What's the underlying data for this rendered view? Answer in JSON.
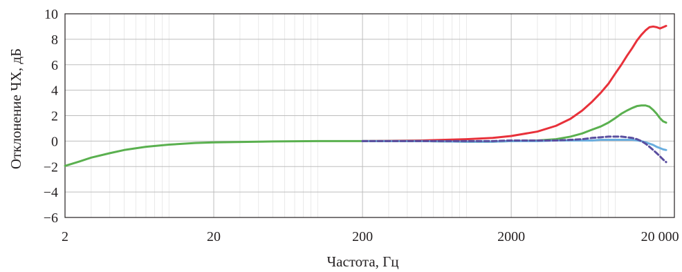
{
  "chart_data": {
    "type": "line",
    "xlabel": "Частота, Гц",
    "ylabel": "Отклонение ЧХ, дБ",
    "x_scale": "log",
    "xlim": [
      2,
      25000
    ],
    "ylim": [
      -6,
      10
    ],
    "grid": true,
    "x_ticks": [
      {
        "value": 2,
        "label": "2"
      },
      {
        "value": 20,
        "label": "20"
      },
      {
        "value": 200,
        "label": "200"
      },
      {
        "value": 2000,
        "label": "2000"
      },
      {
        "value": 20000,
        "label": "20 000"
      }
    ],
    "y_ticks": [
      {
        "value": -6,
        "label": "−6"
      },
      {
        "value": -4,
        "label": "−4"
      },
      {
        "value": -2,
        "label": "−2"
      },
      {
        "value": 0,
        "label": "0"
      },
      {
        "value": 2,
        "label": "2"
      },
      {
        "value": 4,
        "label": "4"
      },
      {
        "value": 6,
        "label": "6"
      },
      {
        "value": 8,
        "label": "8"
      },
      {
        "value": 10,
        "label": "10"
      }
    ],
    "series": [
      {
        "color": "#e8313a",
        "style": "solid",
        "x": [
          200,
          500,
          1000,
          1500,
          2000,
          3000,
          4000,
          5000,
          6000,
          7000,
          8000,
          9000,
          10000,
          11000,
          12000,
          13000,
          14000,
          15000,
          16000,
          17000,
          18000,
          19000,
          20000,
          21000,
          22000
        ],
        "y": [
          0.0,
          0.05,
          0.15,
          0.25,
          0.4,
          0.75,
          1.2,
          1.75,
          2.4,
          3.1,
          3.8,
          4.5,
          5.3,
          6.0,
          6.7,
          7.3,
          7.9,
          8.35,
          8.7,
          8.95,
          9.0,
          8.95,
          8.85,
          8.95,
          9.05
        ]
      },
      {
        "color": "#5ab04f",
        "style": "solid",
        "x": [
          2,
          2.5,
          3,
          4,
          5,
          7,
          10,
          15,
          20,
          50,
          100,
          200,
          500,
          1000,
          1500,
          2000,
          3000,
          4000,
          5000,
          6000,
          7000,
          8000,
          9000,
          10000,
          11000,
          12000,
          13000,
          14000,
          15000,
          16000,
          17000,
          18000,
          19000,
          20000,
          21000,
          22000
        ],
        "y": [
          -1.95,
          -1.6,
          -1.3,
          -0.95,
          -0.7,
          -0.45,
          -0.28,
          -0.15,
          -0.1,
          -0.03,
          0.0,
          0.0,
          0.0,
          -0.05,
          -0.05,
          0.0,
          0.05,
          0.15,
          0.35,
          0.6,
          0.9,
          1.15,
          1.45,
          1.8,
          2.15,
          2.4,
          2.6,
          2.75,
          2.8,
          2.8,
          2.7,
          2.45,
          2.15,
          1.8,
          1.55,
          1.45
        ]
      },
      {
        "color": "#6aaedf",
        "style": "solid",
        "x": [
          200,
          500,
          1000,
          1500,
          2000,
          3000,
          4000,
          5000,
          6000,
          7000,
          8000,
          9000,
          10000,
          11000,
          12000,
          13000,
          14000,
          15000,
          16000,
          17000,
          18000,
          19000,
          20000,
          21000,
          22000
        ],
        "y": [
          0.0,
          0.0,
          -0.05,
          -0.05,
          0.0,
          0.0,
          0.05,
          0.05,
          0.05,
          0.05,
          0.1,
          0.1,
          0.1,
          0.1,
          0.1,
          0.1,
          0.05,
          0.0,
          -0.1,
          -0.2,
          -0.3,
          -0.45,
          -0.55,
          -0.65,
          -0.7
        ]
      },
      {
        "color": "#5a4e9f",
        "style": "dashed",
        "x": [
          200,
          500,
          1000,
          1500,
          2000,
          3000,
          4000,
          5000,
          6000,
          7000,
          8000,
          9000,
          10000,
          11000,
          12000,
          13000,
          14000,
          15000,
          16000,
          17000,
          18000,
          19000,
          20000,
          21000,
          22000
        ],
        "y": [
          0.0,
          0.0,
          0.0,
          0.0,
          0.05,
          0.05,
          0.05,
          0.1,
          0.15,
          0.25,
          0.3,
          0.35,
          0.35,
          0.35,
          0.3,
          0.25,
          0.15,
          0.0,
          -0.2,
          -0.45,
          -0.7,
          -0.95,
          -1.2,
          -1.45,
          -1.65
        ]
      }
    ]
  }
}
